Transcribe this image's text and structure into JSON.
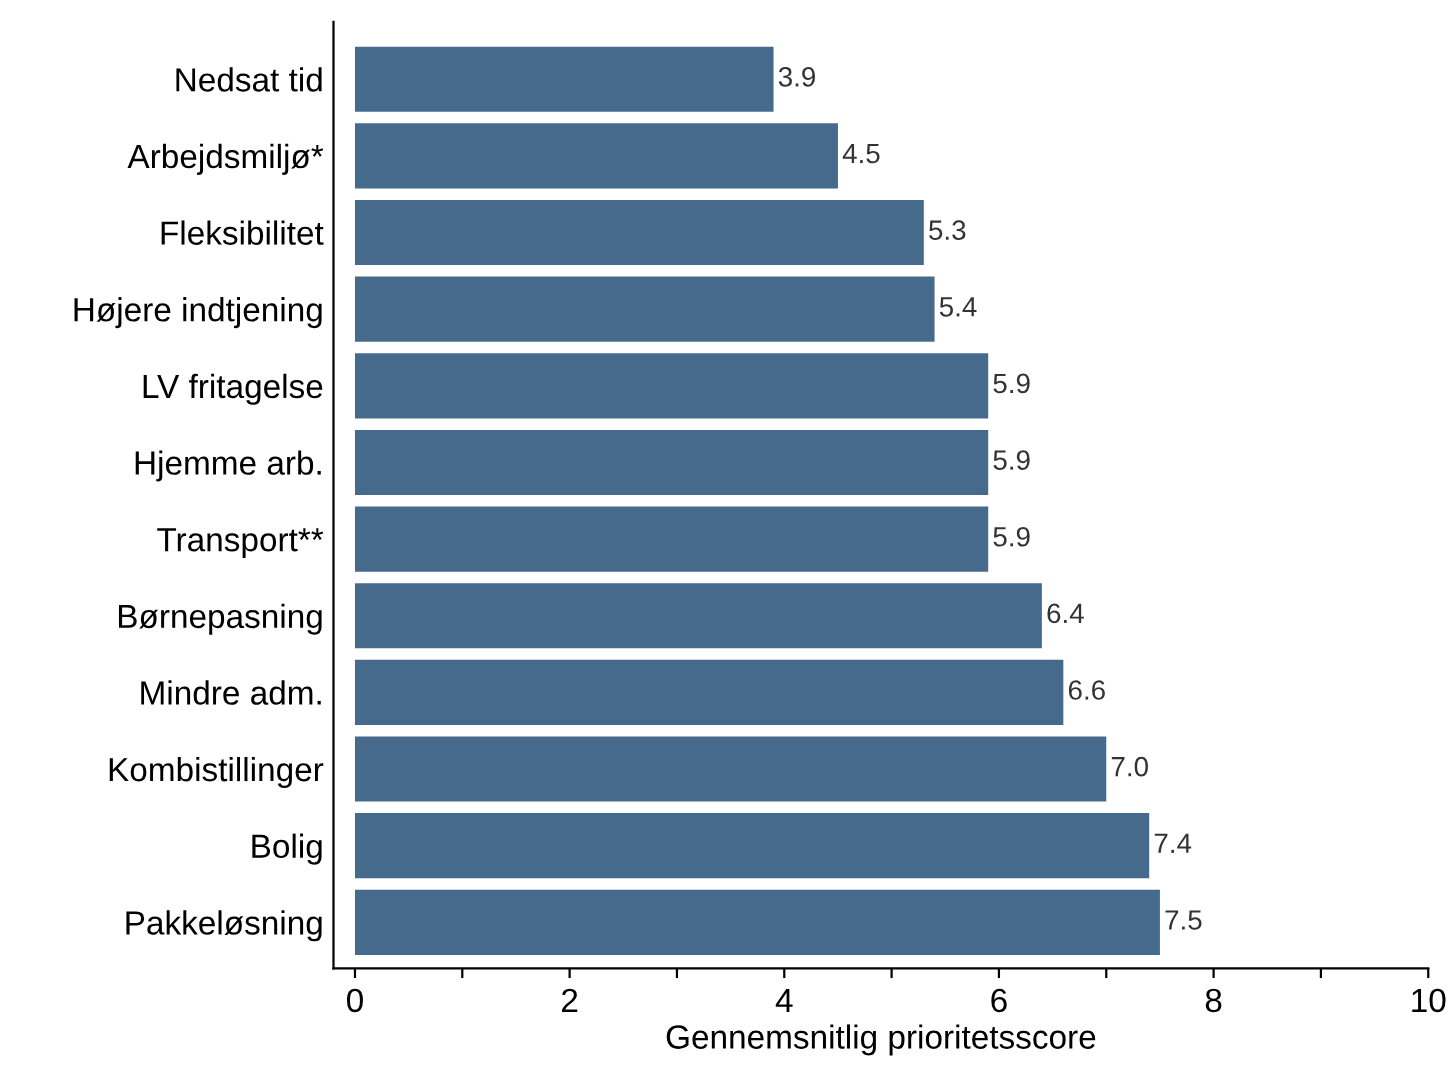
{
  "chart_data": {
    "type": "bar",
    "orientation": "horizontal",
    "categories": [
      "Nedsat tid",
      "Arbejdsmiljø*",
      "Fleksibilitet",
      "Højere indtjening",
      "LV fritagelse",
      "Hjemme arb.",
      "Transport**",
      "Børnepasning",
      "Mindre adm.",
      "Kombistillinger",
      "Bolig",
      "Pakkeløsning"
    ],
    "values": [
      3.9,
      4.5,
      5.3,
      5.4,
      5.9,
      5.9,
      5.9,
      6.4,
      6.6,
      7.0,
      7.4,
      7.5
    ],
    "value_labels": [
      "3.9",
      "4.5",
      "5.3",
      "5.4",
      "5.9",
      "5.9",
      "5.9",
      "6.4",
      "6.6",
      "7.0",
      "7.4",
      "7.5"
    ],
    "color": "#456a8c",
    "xlabel": "Gennemsnitlig prioritetsscore",
    "xlim": [
      -0.2,
      10
    ],
    "xticks": [
      0,
      {
        "value": 1,
        "label": null
      },
      2,
      {
        "value": 3,
        "label": null
      },
      4,
      {
        "value": 5,
        "label": null
      },
      6,
      {
        "value": 7,
        "label": null
      },
      8,
      {
        "value": 9,
        "label": null
      },
      10
    ],
    "grid": false,
    "legend": false
  }
}
